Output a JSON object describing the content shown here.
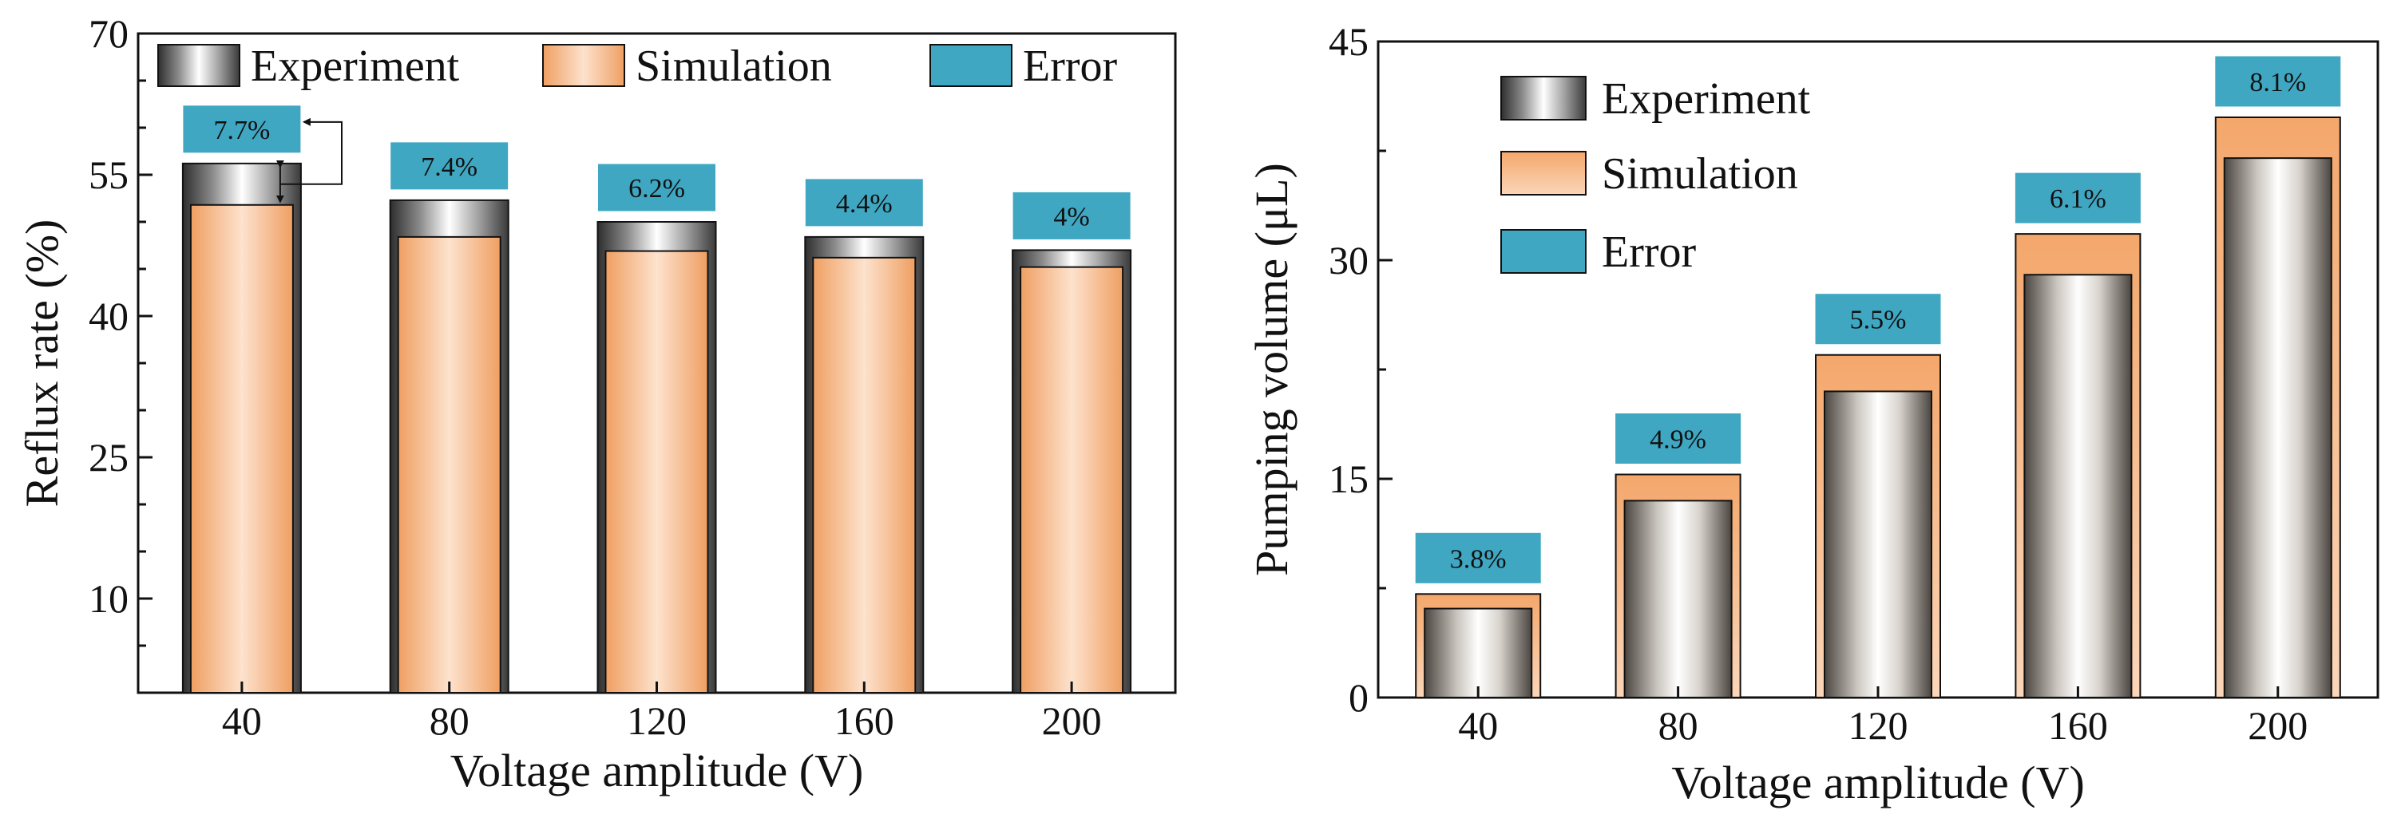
{
  "colors": {
    "error_box": "#3fa7c2",
    "simulation": "#f2b48a",
    "simulation_edge": "#e8873f",
    "experiment_dark": "#3a3a3a",
    "experiment_light": "#ffffff"
  },
  "chart_data": [
    {
      "type": "bar",
      "name": "reflux-rate",
      "overlay": "simulation-inside-experiment",
      "categories": [
        "40",
        "80",
        "120",
        "160",
        "200"
      ],
      "series": [
        {
          "name": "Experiment",
          "values": [
            56.2,
            52.3,
            50.0,
            48.4,
            47.0
          ]
        },
        {
          "name": "Simulation",
          "values": [
            51.8,
            48.4,
            46.9,
            46.2,
            45.2
          ]
        }
      ],
      "errors": [
        "7.7%",
        "7.4%",
        "6.2%",
        "4.4%",
        "4%"
      ],
      "legend": [
        "Experiment",
        "Simulation",
        "Error"
      ],
      "legend_position": "top",
      "title": "",
      "xlabel": "Voltage amplitude (V)",
      "ylabel": "Reflux rate (%)",
      "ylim": [
        0,
        70
      ],
      "yticks": [
        10,
        25,
        40,
        55,
        70
      ],
      "grid": false
    },
    {
      "type": "bar",
      "name": "pumping-volume",
      "overlay": "experiment-inside-simulation",
      "categories": [
        "40",
        "80",
        "120",
        "160",
        "200"
      ],
      "series": [
        {
          "name": "Experiment",
          "values": [
            6.1,
            13.5,
            21.0,
            29.0,
            37.0
          ]
        },
        {
          "name": "Simulation",
          "values": [
            7.1,
            15.3,
            23.5,
            31.8,
            39.8
          ]
        }
      ],
      "errors": [
        "3.8%",
        "4.9%",
        "5.5%",
        "6.1%",
        "8.1%"
      ],
      "legend": [
        "Experiment",
        "Simulation",
        "Error"
      ],
      "legend_position": "top-left",
      "title": "",
      "xlabel": "Voltage amplitude (V)",
      "ylabel": "Pumping  volume (μL)",
      "ylim": [
        0,
        45
      ],
      "yticks": [
        0,
        15,
        30,
        45
      ],
      "grid": false
    }
  ]
}
